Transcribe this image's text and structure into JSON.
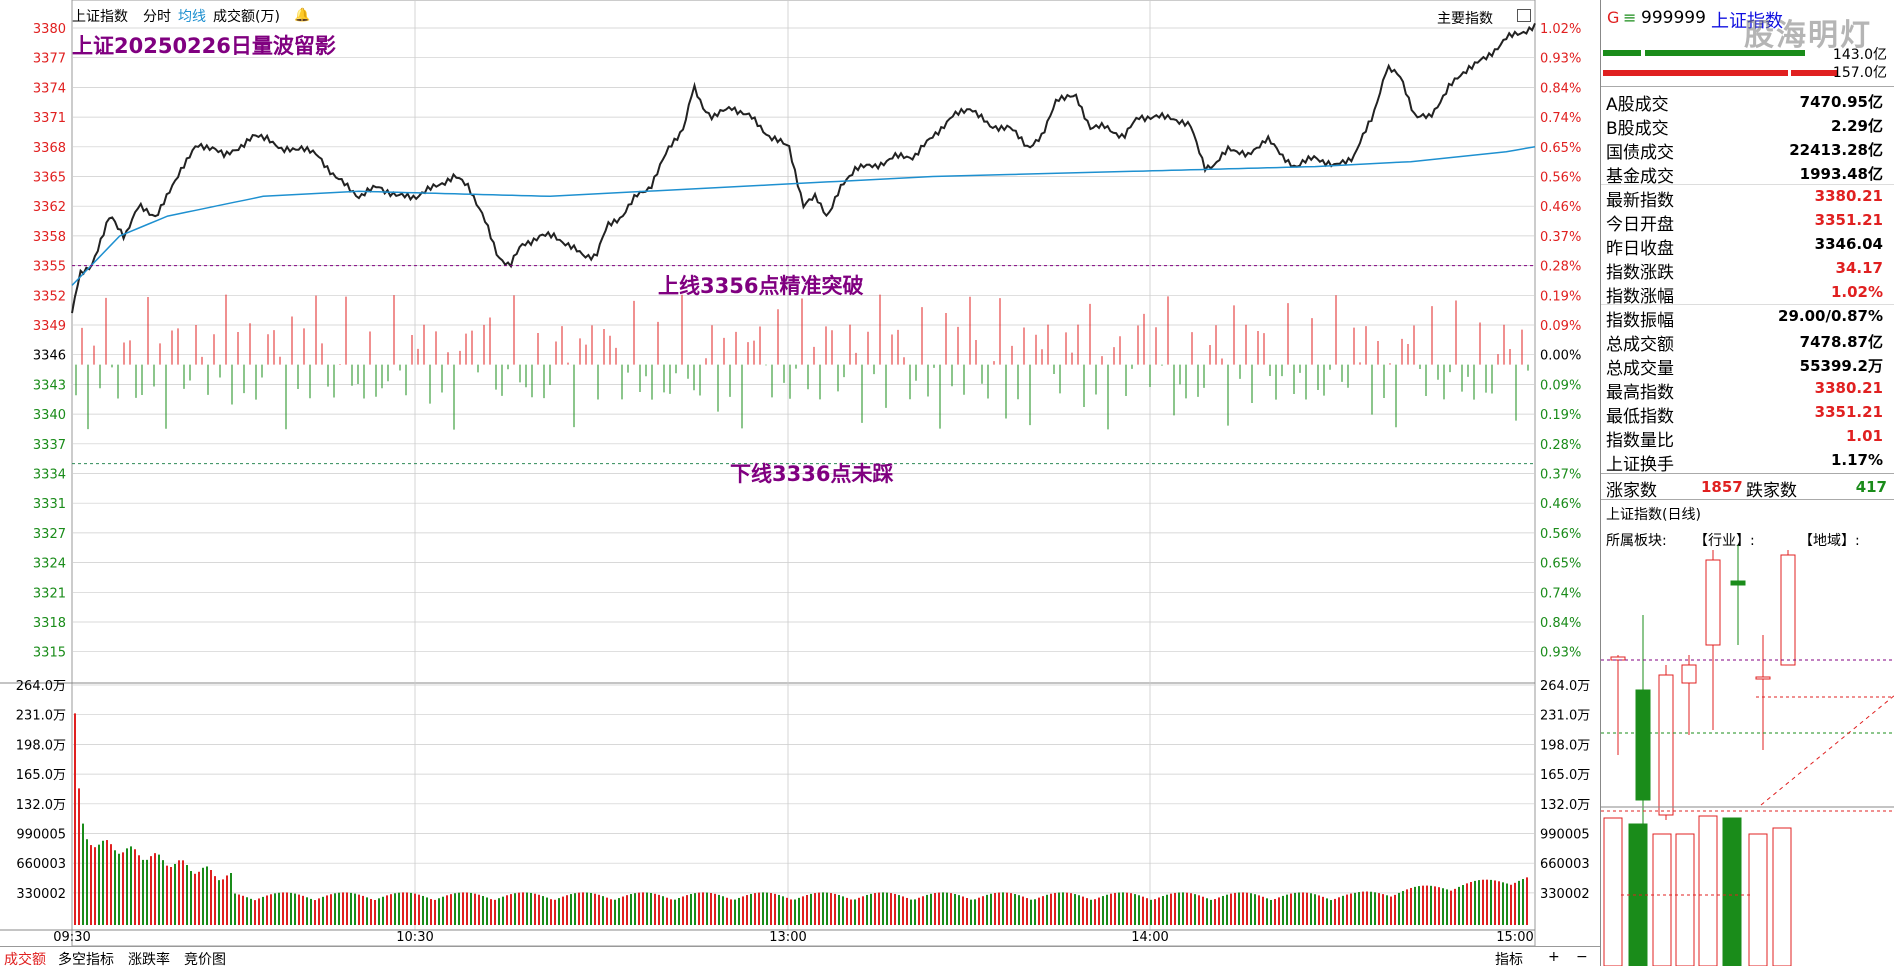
{
  "header": {
    "index_name": "上证指数",
    "tabs": [
      "分时",
      "均线",
      "成交额(万)"
    ],
    "main_indicator_label": "主要指数",
    "title_note": "上证20250226日量波留影"
  },
  "annotations": {
    "upper_line": "上线3356点精准突破",
    "lower_line": "下线3336点未踩"
  },
  "watermark": "股海明灯",
  "price_axis": [
    "3380",
    "3377",
    "3374",
    "3371",
    "3368",
    "3365",
    "3362",
    "3358",
    "3355",
    "3352",
    "3349",
    "3346",
    "3343",
    "3340",
    "3337",
    "3334",
    "3331",
    "3327",
    "3324",
    "3321",
    "3318",
    "3315"
  ],
  "pct_axis_up": [
    "1.02%",
    "0.93%",
    "0.84%",
    "0.74%",
    "0.65%",
    "0.56%",
    "0.46%",
    "0.37%",
    "0.28%",
    "0.19%",
    "0.09%"
  ],
  "pct_axis_mid": "0.00%",
  "pct_axis_down": [
    "0.09%",
    "0.19%",
    "0.28%",
    "0.37%",
    "0.46%",
    "0.56%",
    "0.65%",
    "0.74%",
    "0.84%",
    "0.93%"
  ],
  "volume_axis": [
    "264.0万",
    "231.0万",
    "198.0万",
    "165.0万",
    "132.0万",
    "990005",
    "660003",
    "330002"
  ],
  "time_axis": [
    "09:30",
    "10:30",
    "13:00",
    "14:00",
    "15:00"
  ],
  "right_panel": {
    "code_prefix": "G",
    "code": "999999",
    "name": "上证指数",
    "bar_values": [
      "143.0亿",
      "157.0亿"
    ],
    "rows": [
      {
        "k": "A股成交",
        "v": "7470.95亿",
        "c": "#000"
      },
      {
        "k": "B股成交",
        "v": "2.29亿",
        "c": "#000"
      },
      {
        "k": "国债成交",
        "v": "22413.28亿",
        "c": "#000"
      },
      {
        "k": "基金成交",
        "v": "1993.48亿",
        "c": "#000"
      },
      {
        "k": "最新指数",
        "v": "3380.21",
        "c": "#e02020"
      },
      {
        "k": "今日开盘",
        "v": "3351.21",
        "c": "#e02020"
      },
      {
        "k": "昨日收盘",
        "v": "3346.04",
        "c": "#000"
      },
      {
        "k": "指数涨跌",
        "v": "34.17",
        "c": "#e02020"
      },
      {
        "k": "指数涨幅",
        "v": "1.02%",
        "c": "#e02020"
      },
      {
        "k": "指数振幅",
        "v": "29.00/0.87%",
        "c": "#000"
      },
      {
        "k": "总成交额",
        "v": "7478.87亿",
        "c": "#000"
      },
      {
        "k": "总成交量",
        "v": "55399.2万",
        "c": "#000"
      },
      {
        "k": "最高指数",
        "v": "3380.21",
        "c": "#e02020"
      },
      {
        "k": "最低指数",
        "v": "3351.21",
        "c": "#e02020"
      },
      {
        "k": "指数量比",
        "v": "1.01",
        "c": "#e02020"
      },
      {
        "k": "上证换手",
        "v": "1.17%",
        "c": "#000"
      }
    ],
    "up_label": "涨家数",
    "up_count": "1857",
    "down_label": "跌家数",
    "down_count": "417",
    "daily_title": "上证指数(日线)",
    "sector_label": "所属板块:",
    "industry_label": "【行业】:",
    "region_label": "【地域】:"
  },
  "bottom_tabs": [
    "成交额",
    "多空指标",
    "涨跌率",
    "竞价图"
  ],
  "bottom_right": [
    "指标",
    "+",
    "−"
  ],
  "colors": {
    "up": "#e02020",
    "down": "#1a8c1a",
    "avg": "#1e90d0",
    "price": "#222222",
    "annot": "#800080",
    "grid": "#cccccc"
  }
}
